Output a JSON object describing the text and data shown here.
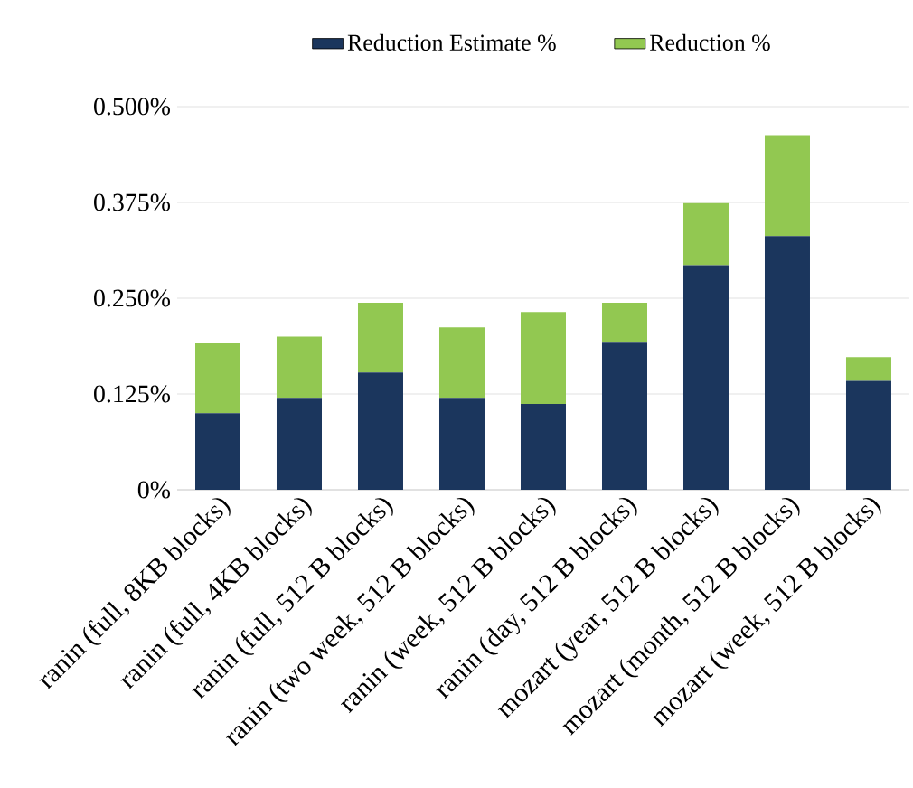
{
  "chart_data": {
    "type": "bar",
    "stacked": true,
    "categories": [
      "ranin  (full, 8KB blocks)",
      "ranin  (full, 4KB blocks)",
      "ranin  (full, 512 B blocks)",
      "ranin  (two week, 512 B blocks)",
      "ranin  (week, 512 B blocks)",
      "ranin  (day, 512 B blocks)",
      "mozart  (year, 512 B blocks)",
      "mozart  (month, 512 B blocks)",
      "mozart  (week, 512 B blocks)"
    ],
    "series": [
      {
        "name": "Reduction Estimate %",
        "color": "#1b365d",
        "values": [
          0.1,
          0.12,
          0.153,
          0.12,
          0.112,
          0.192,
          0.293,
          0.331,
          0.142
        ]
      },
      {
        "name": "Reduction %",
        "color": "#92c851",
        "values": [
          0.091,
          0.08,
          0.091,
          0.092,
          0.12,
          0.052,
          0.081,
          0.132,
          0.031
        ]
      }
    ],
    "ylim": [
      0,
      0.5
    ],
    "yticks": [
      {
        "value": 0,
        "label": "0%"
      },
      {
        "value": 0.125,
        "label": "0.125%"
      },
      {
        "value": 0.25,
        "label": "0.250%"
      },
      {
        "value": 0.375,
        "label": "0.375%"
      },
      {
        "value": 0.5,
        "label": "0.500%"
      }
    ],
    "grid": "y",
    "legend": "top"
  }
}
